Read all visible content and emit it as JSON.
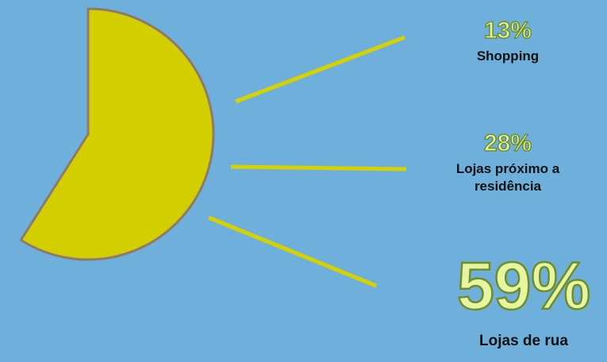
{
  "chart_data": {
    "type": "pie",
    "slices": [
      {
        "label": "Shopping",
        "percent_text": "13%",
        "value": 13
      },
      {
        "label": "Lojas próximo a residência",
        "percent_text": "28%",
        "value": 28
      },
      {
        "label": "Lojas de rua",
        "percent_text": "59%",
        "value": 59
      }
    ],
    "shown_slice": "Lojas de rua",
    "title": "",
    "legend": "none"
  },
  "colors": {
    "background": "#6FAFDC",
    "slice_fill": "#D2CE00",
    "slice_outline": "#8E7A6A",
    "leader_line": "#D6D200",
    "percent_text": "#E8F5A0"
  }
}
